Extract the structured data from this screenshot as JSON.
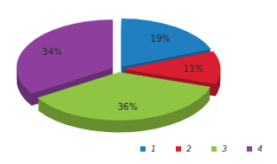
{
  "chart_data": {
    "type": "pie",
    "categories": [
      "1",
      "2",
      "3",
      "4"
    ],
    "values": [
      19,
      11,
      36,
      34
    ],
    "value_labels": [
      "19%",
      "11%",
      "36%",
      "34%"
    ],
    "colors": [
      "#1f7fc0",
      "#d81e2f",
      "#8fc543",
      "#8e3f9e"
    ],
    "data_labels": true,
    "legend": "bottom-right"
  }
}
